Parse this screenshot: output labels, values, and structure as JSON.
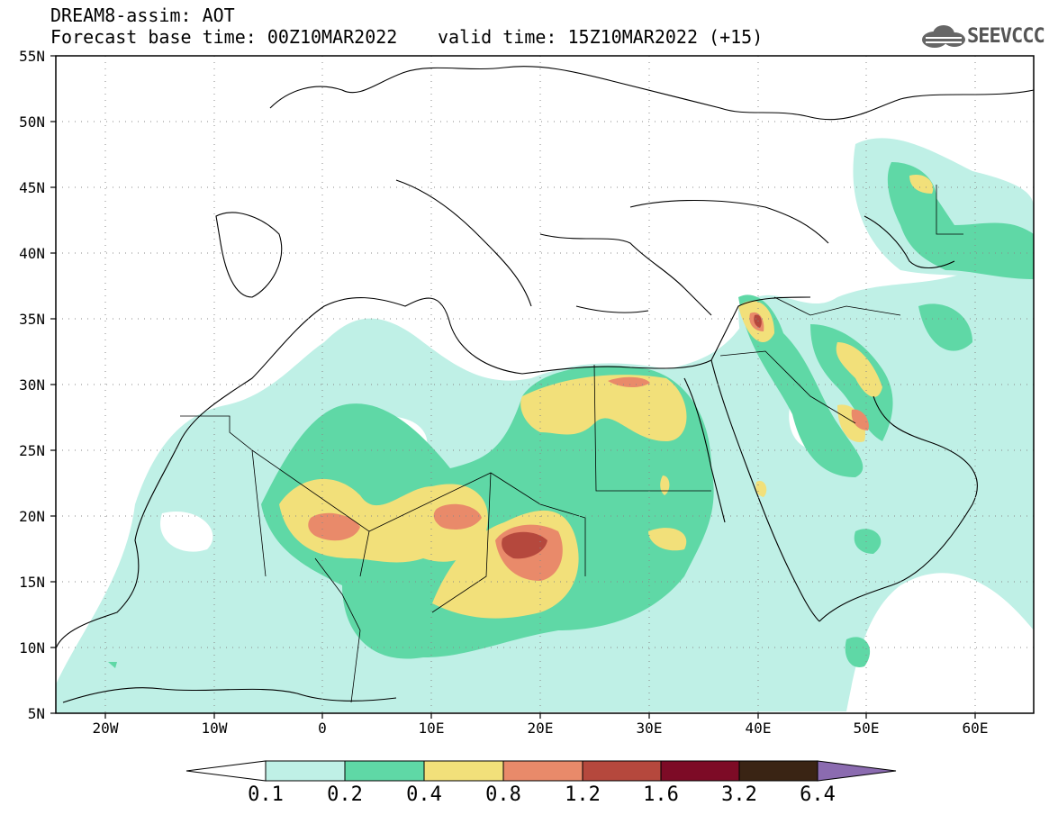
{
  "title": {
    "line1": "DREAM8-assim: AOT",
    "line2": "Forecast base time: 00Z10MAR2022",
    "valid": "valid time: 15Z10MAR2022 (+15)"
  },
  "logo": {
    "text": "SEEVCCC",
    "icon": "cloud-icon"
  },
  "axes": {
    "lat_labels": [
      "55N",
      "50N",
      "45N",
      "40N",
      "35N",
      "30N",
      "25N",
      "20N",
      "15N",
      "10N",
      "5N"
    ],
    "lon_labels": [
      "20W",
      "10W",
      "0",
      "10E",
      "20E",
      "30E",
      "40E",
      "50E",
      "60E"
    ],
    "lat_range": [
      5,
      55
    ],
    "lon_range": [
      -25,
      65
    ],
    "grid": "dotted"
  },
  "colorbar": {
    "labels": [
      "0.1",
      "0.2",
      "0.4",
      "0.8",
      "1.2",
      "1.6",
      "3.2",
      "6.4"
    ],
    "colors": [
      "#bff0e6",
      "#5fd8a6",
      "#f2e07a",
      "#e98a6a",
      "#b5483d",
      "#7d0b26",
      "#3a2414",
      "#8b6bb0"
    ]
  },
  "colors": {
    "background": "#ffffff",
    "coast": "#000000"
  }
}
